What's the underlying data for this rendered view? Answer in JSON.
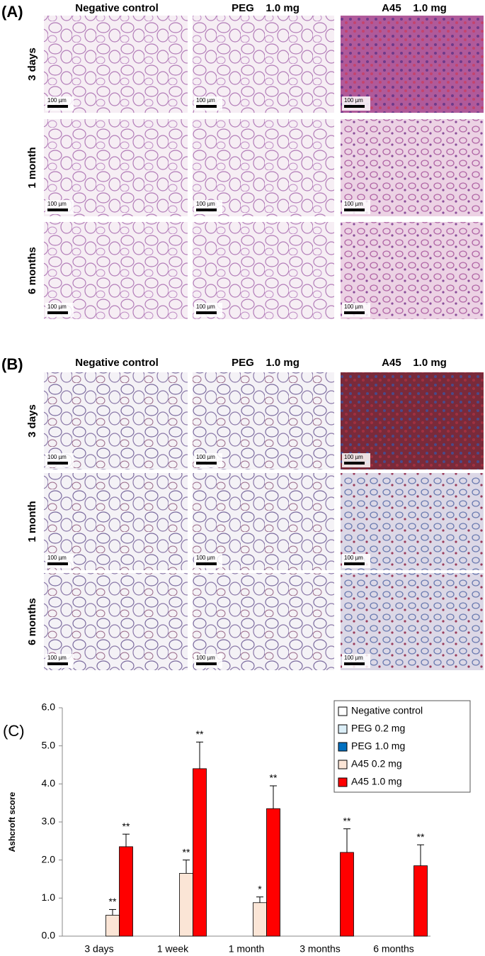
{
  "panels": [
    {
      "label": "(A)",
      "columns": [
        "Negative control",
        "PEG    1.0 mg",
        "A45    1.0 mg"
      ],
      "rows": [
        "3 days",
        "1 month",
        "6 months"
      ],
      "scale_bar": "100 µm"
    },
    {
      "label": "(B)",
      "columns": [
        "Negative control",
        "PEG    1.0 mg",
        "A45    1.0 mg"
      ],
      "rows": [
        "3 days",
        "1 month",
        "6 months"
      ],
      "scale_bar": "100 µm"
    }
  ],
  "chart_panel_label": "(C)",
  "chart_data": {
    "type": "bar",
    "ylabel": "Ashcroft score",
    "categories": [
      "3 days",
      "1 week",
      "1 month",
      "3 months",
      "6 months"
    ],
    "series": [
      {
        "name": "Negative control",
        "color": "#ffffff",
        "values": [
          0,
          0,
          0,
          0,
          0
        ],
        "errors": [
          null,
          null,
          null,
          null,
          null
        ],
        "annotations": [
          null,
          null,
          null,
          null,
          null
        ]
      },
      {
        "name": "PEG 0.2 mg",
        "color": "#dbeef7",
        "values": [
          0,
          0,
          0,
          0,
          0
        ],
        "errors": [
          null,
          null,
          null,
          null,
          null
        ],
        "annotations": [
          null,
          null,
          null,
          null,
          null
        ]
      },
      {
        "name": "PEG 1.0 mg",
        "color": "#0070c0",
        "values": [
          0,
          0,
          0,
          0,
          0
        ],
        "errors": [
          null,
          null,
          null,
          null,
          null
        ],
        "annotations": [
          null,
          null,
          null,
          null,
          null
        ]
      },
      {
        "name": "A45 0.2 mg",
        "color": "#fbe5d6",
        "values": [
          0.55,
          1.65,
          0.88,
          0,
          0
        ],
        "errors": [
          0.15,
          0.35,
          0.15,
          null,
          null
        ],
        "annotations": [
          "**",
          "**",
          "*",
          null,
          null
        ]
      },
      {
        "name": "A45 1.0 mg",
        "color": "#ff0000",
        "values": [
          2.35,
          4.4,
          3.35,
          2.2,
          1.85
        ],
        "errors": [
          0.33,
          0.7,
          0.6,
          0.62,
          0.55
        ],
        "annotations": [
          "**",
          "**",
          "**",
          "**",
          "**"
        ]
      }
    ],
    "ylim": [
      0,
      6
    ],
    "yticks": [
      {
        "value": 0,
        "label": "0.0"
      },
      {
        "value": 1,
        "label": "1.0"
      },
      {
        "value": 2,
        "label": "2.0"
      },
      {
        "value": 3,
        "label": "3.0"
      },
      {
        "value": 4,
        "label": "4.0"
      },
      {
        "value": 5,
        "label": "5.0"
      },
      {
        "value": 6,
        "label": "6.0"
      }
    ],
    "legend": "top-right"
  }
}
